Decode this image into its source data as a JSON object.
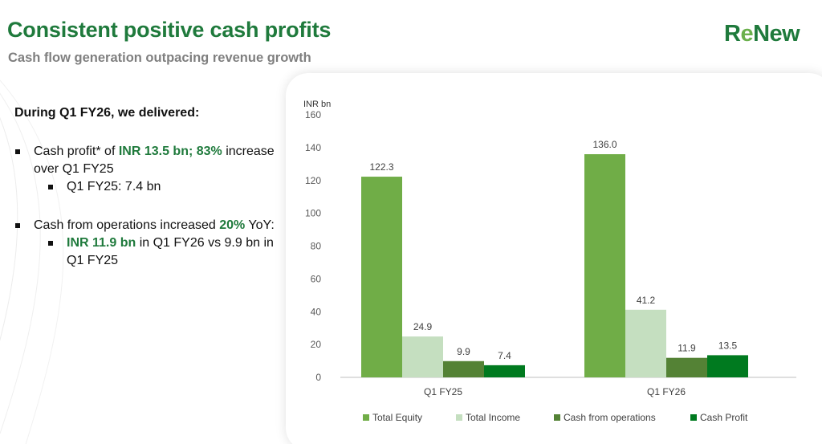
{
  "header": {
    "title": "Consistent positive cash profits",
    "subtitle": "Cash flow generation outpacing revenue growth",
    "logo_text_part1": "R",
    "logo_text_part2": "e",
    "logo_text_part3": "New"
  },
  "summary": {
    "lead": "During Q1 FY26, we delivered:",
    "bullet1_prefix": "Cash profit* of ",
    "bullet1_highlight": "INR 13.5 bn; 83%",
    "bullet1_suffix": " increase over Q1 FY25",
    "bullet1_sub": "Q1 FY25: 7.4 bn",
    "bullet2_prefix": "Cash from operations increased ",
    "bullet2_highlight": "20%",
    "bullet2_suffix": " YoY:",
    "bullet2_sub_highlight": "INR 11.9 bn",
    "bullet2_sub_suffix": " in Q1 FY26 vs 9.9 bn in Q1 FY25"
  },
  "colors": {
    "brand_green": "#1f7a3c",
    "total_equity": "#70ad47",
    "total_income": "#c5dfc0",
    "cash_from_operations": "#548235",
    "cash_profit": "#007a1f"
  },
  "chart_data": {
    "type": "bar",
    "unit_label": "INR bn",
    "categories": [
      "Q1 FY25",
      "Q1 FY26"
    ],
    "series": [
      {
        "name": "Total Equity",
        "values": [
          122.3,
          136.0
        ],
        "labels": [
          "122.3",
          "136.0"
        ],
        "color": "#70ad47"
      },
      {
        "name": "Total Income",
        "values": [
          24.9,
          41.2
        ],
        "labels": [
          "24.9",
          "41.2"
        ],
        "color": "#c5dfc0"
      },
      {
        "name": "Cash from operations",
        "values": [
          9.9,
          11.9
        ],
        "labels": [
          "9.9",
          "11.9"
        ],
        "color": "#548235"
      },
      {
        "name": "Cash Profit",
        "values": [
          7.4,
          13.5
        ],
        "labels": [
          "7.4",
          "13.5"
        ],
        "color": "#007a1f"
      }
    ],
    "yticks": [
      0,
      20,
      40,
      60,
      80,
      100,
      120,
      140,
      160
    ],
    "ylim": [
      0,
      160
    ],
    "grid": false,
    "legend_position": "bottom"
  }
}
